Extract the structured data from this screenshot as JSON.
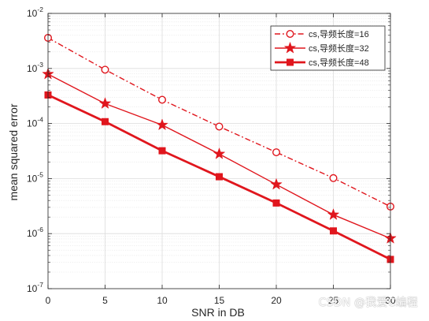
{
  "chart_data": {
    "type": "line",
    "xlabel": "SNR in DB",
    "ylabel": "mean squared error",
    "x": [
      0,
      5,
      10,
      15,
      20,
      25,
      30
    ],
    "xlim": [
      0,
      30
    ],
    "xticks": [
      "0",
      "5",
      "10",
      "15",
      "20",
      "25",
      "30"
    ],
    "ylim": [
      1e-07,
      0.01
    ],
    "yscale": "log",
    "yticks": [
      {
        "base": "10",
        "exp": "-7"
      },
      {
        "base": "10",
        "exp": "-6"
      },
      {
        "base": "10",
        "exp": "-5"
      },
      {
        "base": "10",
        "exp": "-4"
      },
      {
        "base": "10",
        "exp": "-3"
      },
      {
        "base": "10",
        "exp": "-2"
      }
    ],
    "grid": true,
    "legend_position": "top-right",
    "series": [
      {
        "name": "cs,导频长度=16",
        "values": [
          0.0036,
          0.00095,
          0.00027,
          8.8e-05,
          3e-05,
          1.02e-05,
          3.1e-06
        ],
        "color": "#e0161d",
        "line": "dash-dot",
        "marker": "circle"
      },
      {
        "name": "cs,导频长度=32",
        "values": [
          0.00079,
          0.00023,
          9.4e-05,
          2.8e-05,
          7.8e-06,
          2.2e-06,
          8.2e-07
        ],
        "color": "#e0161d",
        "line": "solid",
        "marker": "star"
      },
      {
        "name": "cs,导频长度=48",
        "values": [
          0.00033,
          0.000108,
          3.2e-05,
          1.08e-05,
          3.6e-06,
          1.12e-06,
          3.4e-07
        ],
        "color": "#e0161d",
        "line": "solid-thick",
        "marker": "square"
      }
    ]
  },
  "watermark": "CSDN @我爱C编程"
}
